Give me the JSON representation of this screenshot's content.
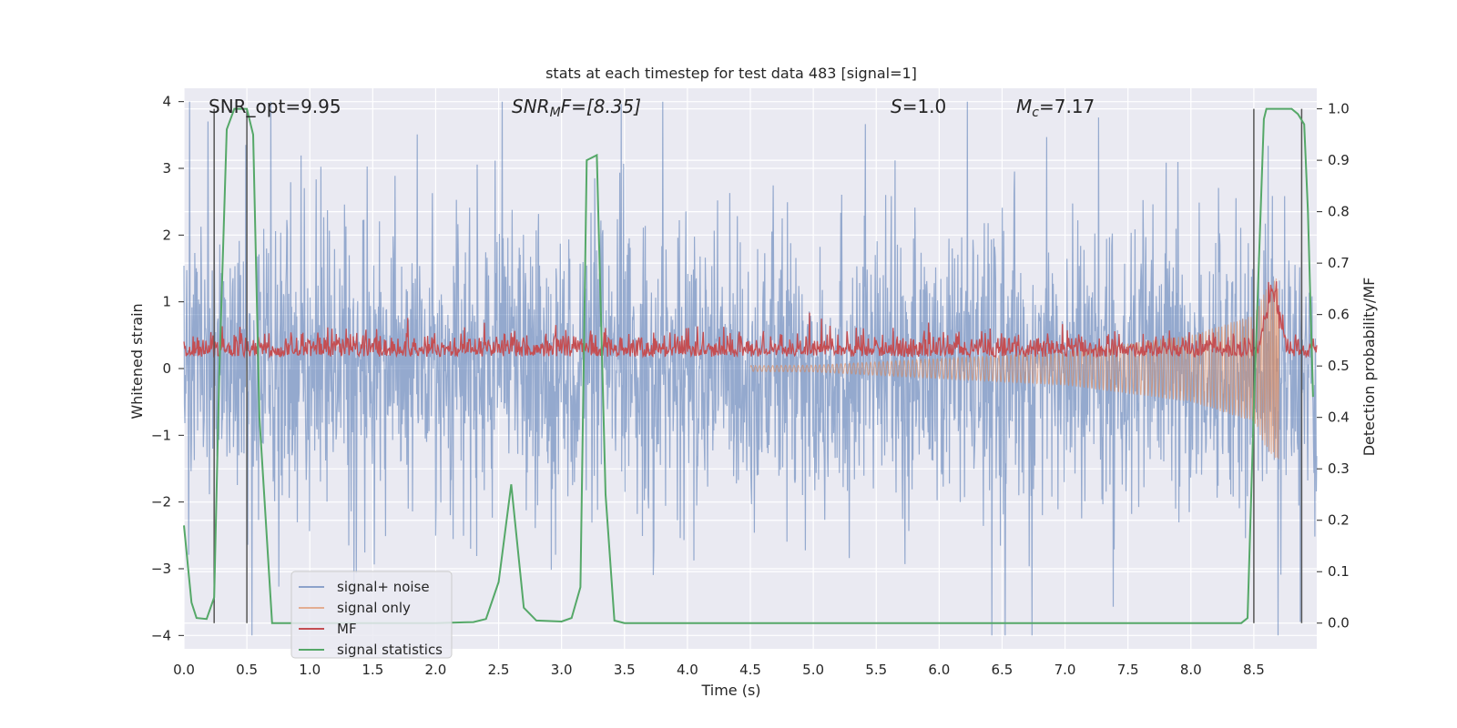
{
  "chart_data": {
    "type": "line",
    "title": "stats at each timestep for test data 483 [signal=1]",
    "xlabel": "Time (s)",
    "ylabel": "Whitened strain",
    "y2label": "Detection probability/MF",
    "xlim": [
      0.0,
      9.0
    ],
    "ylim": [
      -4.2,
      4.2
    ],
    "y2lim": [
      -0.05,
      1.04
    ],
    "xticks": [
      "0.0",
      "0.5",
      "1.0",
      "1.5",
      "2.0",
      "2.5",
      "3.0",
      "3.5",
      "4.0",
      "4.5",
      "5.0",
      "5.5",
      "6.0",
      "6.5",
      "7.0",
      "7.5",
      "8.0",
      "8.5"
    ],
    "yticks": [
      "4",
      "3",
      "2",
      "1",
      "0",
      "−1",
      "−2",
      "−3",
      "−4"
    ],
    "y2ticks": [
      "1.0",
      "0.9",
      "0.8",
      "0.7",
      "0.6",
      "0.5",
      "0.4",
      "0.3",
      "0.2",
      "0.1",
      "0.0"
    ],
    "grid": true,
    "legend_position": "lower-left",
    "annotations": {
      "snr_opt": "SNR_opt=9.95",
      "snr_mf_sym": "SNR",
      "snr_mf_sub": "M",
      "snr_mf_rest": "F=[8.35]",
      "s_sym": "S",
      "s_rest": "=1.0",
      "mc_sym": "M",
      "mc_sub": "c",
      "mc_rest": "=7.17"
    },
    "series": [
      {
        "name": "signal+ noise",
        "color": "#4c72b0",
        "axis": "left",
        "style": "noise",
        "amplitude_range": [
          -4.0,
          4.0
        ]
      },
      {
        "name": "signal only",
        "color": "#dd8452",
        "axis": "left",
        "style": "chirp",
        "envelope_x": [
          0.0,
          5.0,
          7.0,
          8.0,
          8.5,
          8.6,
          8.7
        ],
        "envelope_y": [
          0.0,
          0.05,
          0.25,
          0.5,
          0.8,
          1.2,
          1.4
        ]
      },
      {
        "name": "MF",
        "color": "#c44e52",
        "axis": "right",
        "style": "noise",
        "base": 0.5,
        "peak_x": 8.65,
        "peak_y": 0.65
      },
      {
        "name": "signal statistics",
        "color": "#55a868",
        "axis": "right",
        "x": [
          0.0,
          0.06,
          0.1,
          0.18,
          0.24,
          0.28,
          0.34,
          0.4,
          0.5,
          0.55,
          0.6,
          0.7,
          0.9,
          1.5,
          2.0,
          2.3,
          2.4,
          2.5,
          2.6,
          2.7,
          2.8,
          3.0,
          3.08,
          3.15,
          3.2,
          3.28,
          3.35,
          3.42,
          3.5,
          4.0,
          5.0,
          6.0,
          7.0,
          8.0,
          8.4,
          8.45,
          8.5,
          8.58,
          8.6,
          8.65,
          8.7,
          8.8,
          8.85,
          8.9,
          8.93,
          8.97
        ],
        "y": [
          0.19,
          0.04,
          0.01,
          0.008,
          0.05,
          0.48,
          0.96,
          1.0,
          1.0,
          0.95,
          0.4,
          0.0,
          0.0,
          0.0,
          0.0,
          0.002,
          0.008,
          0.08,
          0.27,
          0.03,
          0.005,
          0.003,
          0.01,
          0.07,
          0.9,
          0.91,
          0.25,
          0.005,
          0.0,
          0.0,
          0.0,
          0.0,
          0.0,
          0.0,
          0.0,
          0.01,
          0.42,
          0.98,
          1.0,
          1.0,
          1.0,
          1.0,
          0.99,
          0.97,
          0.8,
          0.44
        ]
      }
    ],
    "vlines_x": [
      0.24,
      0.5,
      8.5,
      8.88
    ]
  }
}
